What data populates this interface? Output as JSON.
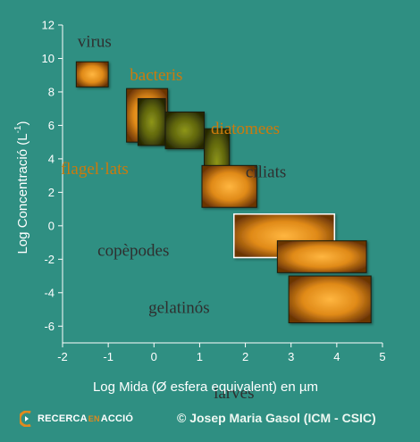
{
  "chart_data": {
    "type": "range-boxes",
    "xlabel": "Log Mida (Ø esfera equivalent) en µm",
    "ylabel_main": "Log Concentració (L",
    "ylabel_sup": "-1",
    "ylabel_close": ")",
    "xlim": [
      -2,
      5
    ],
    "ylim": [
      -7,
      12
    ],
    "xticks": [
      -2,
      -1,
      0,
      1,
      2,
      3,
      4,
      5
    ],
    "yticks": [
      -6,
      -4,
      -2,
      0,
      2,
      4,
      6,
      8,
      10,
      12
    ],
    "grid": false,
    "colors": {
      "orange": "#e08a18",
      "olive": "#6f7412",
      "background": "#2f8f82",
      "axis": "#ffffff",
      "label_text": "#2f2f2f",
      "label_text_orange": "#cc7a0c"
    },
    "series": [
      {
        "name": "virus",
        "x": [
          -1.7,
          -1.0
        ],
        "y": [
          8.3,
          9.8
        ],
        "fill": "orange"
      },
      {
        "name": "bacteris",
        "x": [
          -0.6,
          0.3
        ],
        "y": [
          5.0,
          8.2
        ],
        "fill": "orange"
      },
      {
        "name": "",
        "x": [
          -0.35,
          0.25
        ],
        "y": [
          4.8,
          7.6
        ],
        "fill": "olive"
      },
      {
        "name": "",
        "x": [
          0.25,
          1.1
        ],
        "y": [
          4.6,
          6.8
        ],
        "fill": "olive"
      },
      {
        "name": "diatomees",
        "x": [
          1.1,
          1.65
        ],
        "y": [
          1.8,
          5.8
        ],
        "fill": "olive"
      },
      {
        "name": "ciliats",
        "x": [
          1.05,
          2.25
        ],
        "y": [
          1.1,
          3.6
        ],
        "fill": "orange"
      },
      {
        "name": "copèpodes",
        "x": [
          1.75,
          3.95
        ],
        "y": [
          -1.9,
          0.7
        ],
        "fill": "orange",
        "outline": "#ffffff"
      },
      {
        "name": "gelatinós",
        "x": [
          2.7,
          4.65
        ],
        "y": [
          -2.8,
          -0.9
        ],
        "fill": "orange"
      },
      {
        "name": "larves",
        "x": [
          2.95,
          4.75
        ],
        "y": [
          -5.8,
          -3.0
        ],
        "fill": "orange"
      }
    ],
    "labels": [
      {
        "text": "virus",
        "x": -1.3,
        "y": 10.7,
        "color": "dark"
      },
      {
        "text": "bacteris",
        "x": 0.05,
        "y": 8.7,
        "color": "orange"
      },
      {
        "text": "diatomees",
        "x": 2.0,
        "y": 5.5,
        "color": "orange"
      },
      {
        "text": "flagel·lats",
        "x": -1.3,
        "y": 3.1,
        "color": "orange"
      },
      {
        "text": "ciliats",
        "x": 2.45,
        "y": 2.9,
        "color": "dark"
      },
      {
        "text": "copèpodes",
        "x": -0.45,
        "y": -1.8,
        "color": "dark"
      },
      {
        "text": "gelatinós",
        "x": 0.55,
        "y": -5.2,
        "color": "dark"
      },
      {
        "text": "larves",
        "x": 1.75,
        "y": -10.3,
        "color": "dark"
      }
    ]
  },
  "footer": {
    "logo_main": "RECERCA",
    "logo_mid": "EN",
    "logo_end": "ACCIÓ",
    "credit": "© Josep Maria Gasol (ICM - CSIC)"
  }
}
